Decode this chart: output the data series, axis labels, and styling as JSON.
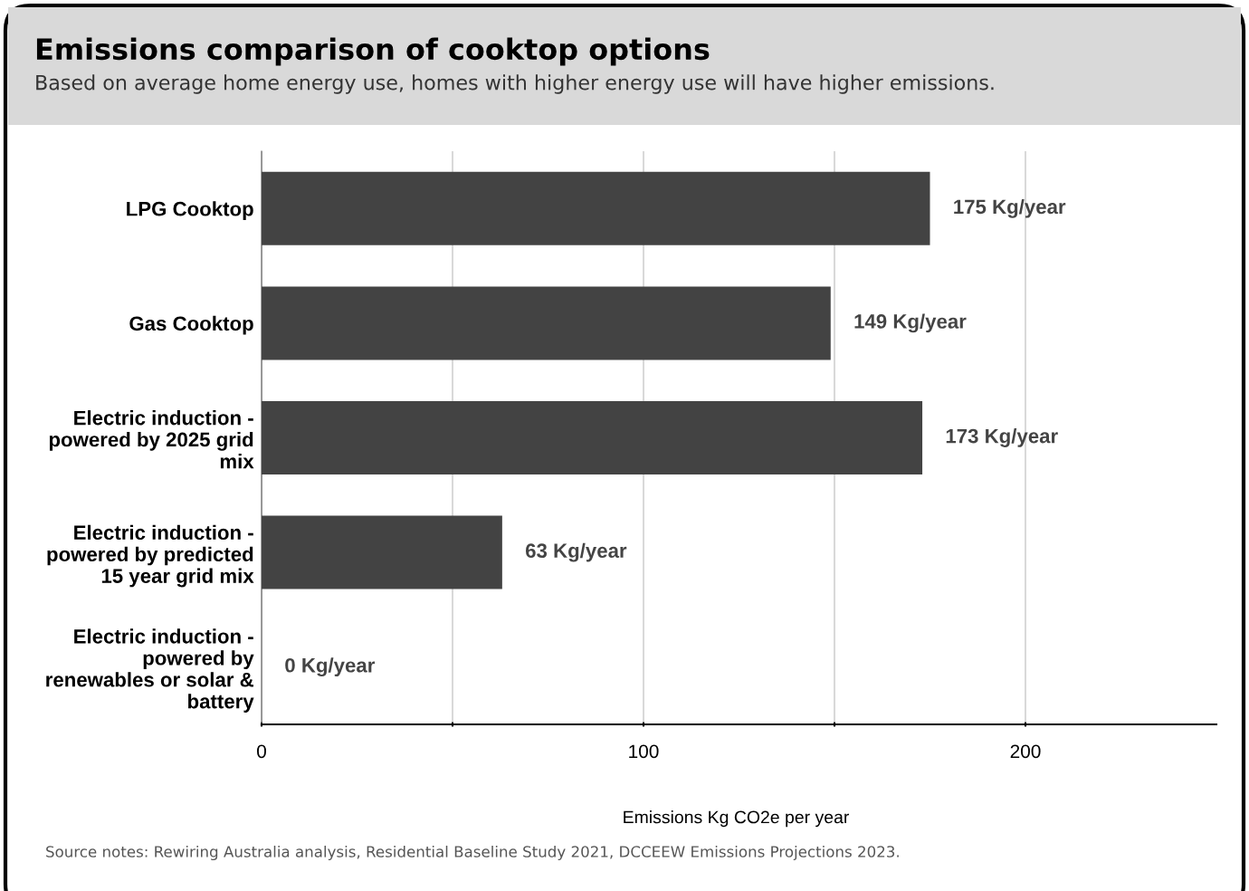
{
  "chart_data": {
    "type": "bar",
    "orientation": "horizontal",
    "title": "Emissions comparison of cooktop options",
    "subtitle": "Based on average home energy use, homes with higher energy use will have higher emissions.",
    "xlabel": "Emissions Kg CO2e per year",
    "categories": [
      "LPG Cooktop",
      "Gas Cooktop",
      "Electric induction -\npowered by 2025 grid\nmix",
      "Electric induction -\npowered by predicted\n15 year grid mix",
      "Electric induction -\npowered by\nrenewables or solar &\nbattery"
    ],
    "values": [
      175,
      149,
      173,
      63,
      0
    ],
    "value_labels": [
      "175 Kg/year",
      "149 Kg/year",
      "173 Kg/year",
      "63 Kg/year",
      "0 Kg/year"
    ],
    "color": "#434343",
    "xlim": [
      0,
      250
    ],
    "xticks": [
      0,
      {
        "value": 50,
        "label": null
      },
      100,
      {
        "value": 150,
        "label": null
      },
      200
    ],
    "grid": "x",
    "annotations": [
      "Source notes: Rewiring Australia analysis, Residential Baseline Study 2021, DCCEEW Emissions Projections 2023."
    ]
  }
}
